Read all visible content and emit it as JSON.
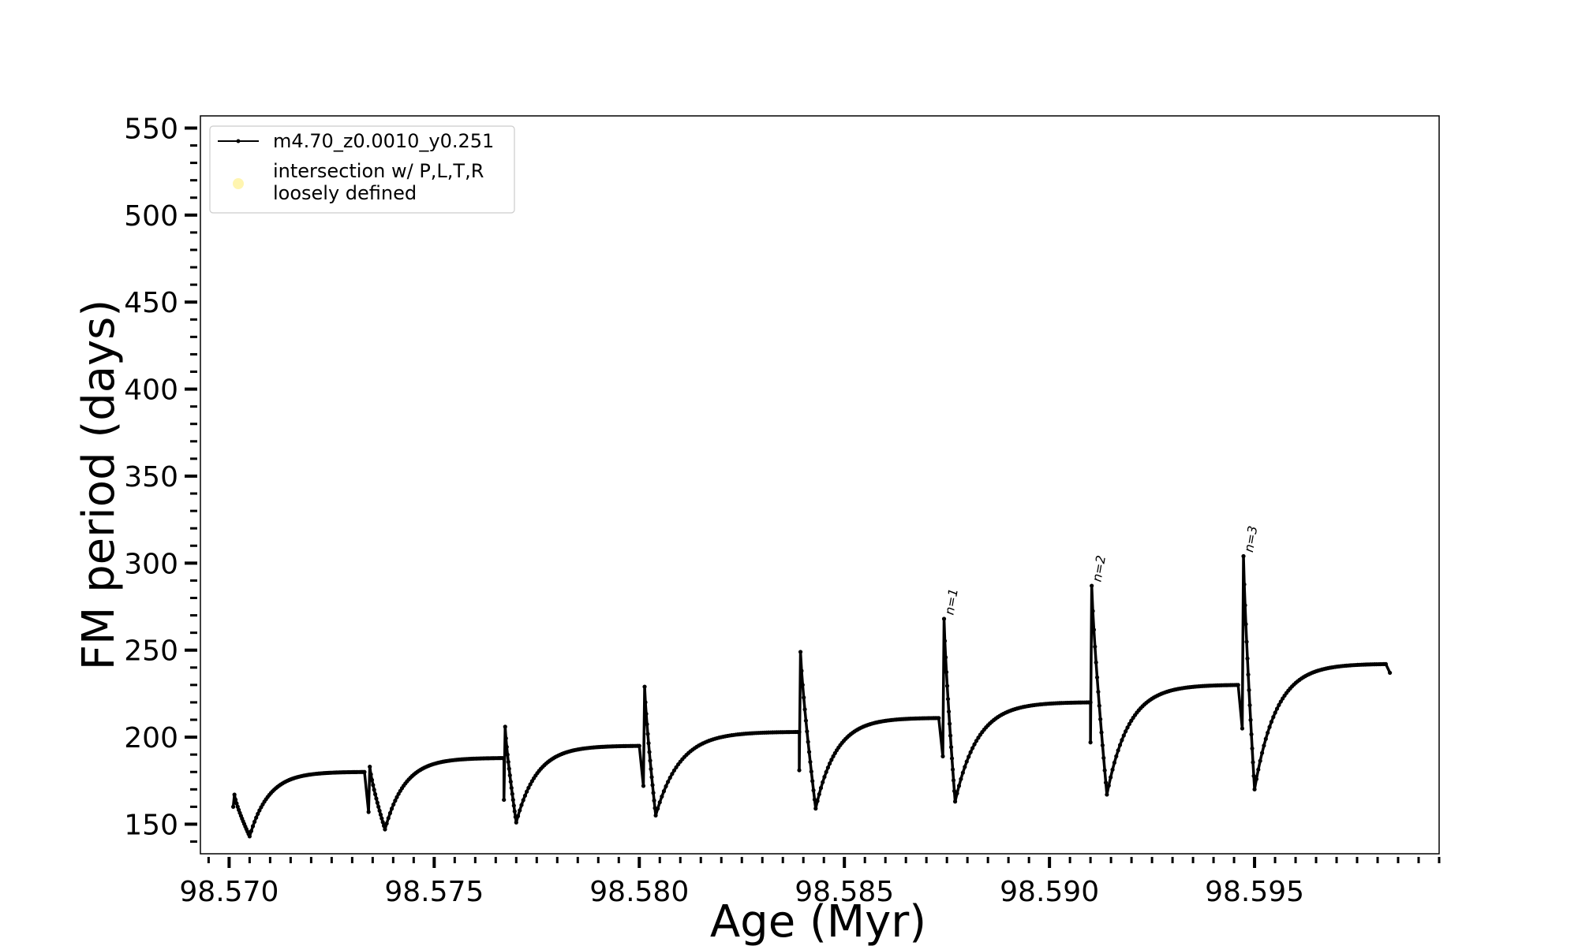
{
  "chart_data": {
    "type": "line",
    "xlabel": "Age (Myr)",
    "ylabel": "FM period (days)",
    "xlim": [
      98.5693,
      98.5995
    ],
    "ylim": [
      133,
      557
    ],
    "x_ticks": [
      98.57,
      98.575,
      98.58,
      98.585,
      98.59,
      98.595
    ],
    "x_tick_labels": [
      "98.570",
      "98.575",
      "98.580",
      "98.585",
      "98.590",
      "98.595"
    ],
    "y_ticks": [
      150,
      200,
      250,
      300,
      350,
      400,
      450,
      500,
      550
    ],
    "y_tick_labels": [
      "150",
      "200",
      "250",
      "300",
      "350",
      "400",
      "450",
      "500",
      "550"
    ],
    "grid": false,
    "legend_position": "top-left",
    "legend": [
      {
        "label": "m4.70_z0.0010_y0.251",
        "marker": "line-dot",
        "color": "#000000"
      },
      {
        "label_line1": "intersection w/ P,L,T,R",
        "label_line2": "loosely defined",
        "marker": "circle",
        "color": "#fff5b0"
      }
    ],
    "series": [
      {
        "name": "m4.70_z0.0010_y0.251",
        "color": "#000000",
        "segments": [
          {
            "start": 98.5701,
            "end": 98.5733,
            "y0": 160,
            "peak": 167,
            "min_x": 98.5705,
            "min_y": 143,
            "plateau": 180
          },
          {
            "start": 98.5734,
            "end": 98.5767,
            "y0": 157,
            "peak": 183,
            "min_x": 98.5738,
            "min_y": 147,
            "plateau": 188
          },
          {
            "start": 98.5767,
            "end": 98.58,
            "y0": 164,
            "peak": 206,
            "min_x": 98.577,
            "min_y": 151,
            "plateau": 195
          },
          {
            "start": 98.5801,
            "end": 98.5839,
            "y0": 172,
            "peak": 229,
            "min_x": 98.5804,
            "min_y": 155,
            "plateau": 203
          },
          {
            "start": 98.5839,
            "end": 98.5873,
            "y0": 181,
            "peak": 249,
            "min_x": 98.5843,
            "min_y": 159,
            "plateau": 211
          },
          {
            "start": 98.5874,
            "end": 98.591,
            "y0": 189,
            "peak": 268,
            "min_x": 98.5877,
            "min_y": 163,
            "plateau": 220
          },
          {
            "start": 98.591,
            "end": 98.5946,
            "y0": 197,
            "peak": 287,
            "min_x": 98.5914,
            "min_y": 167,
            "plateau": 230
          },
          {
            "start": 98.5947,
            "end": 98.5983,
            "y0": 205,
            "peak": 304,
            "min_x": 98.595,
            "min_y": 170,
            "plateau": 242,
            "end_y": 237
          }
        ]
      }
    ],
    "annotations": [
      {
        "text": "n=1",
        "x": 98.5875,
        "y": 269
      },
      {
        "text": "n=2",
        "x": 98.5911,
        "y": 288
      },
      {
        "text": "n=3",
        "x": 98.5948,
        "y": 305
      }
    ]
  }
}
